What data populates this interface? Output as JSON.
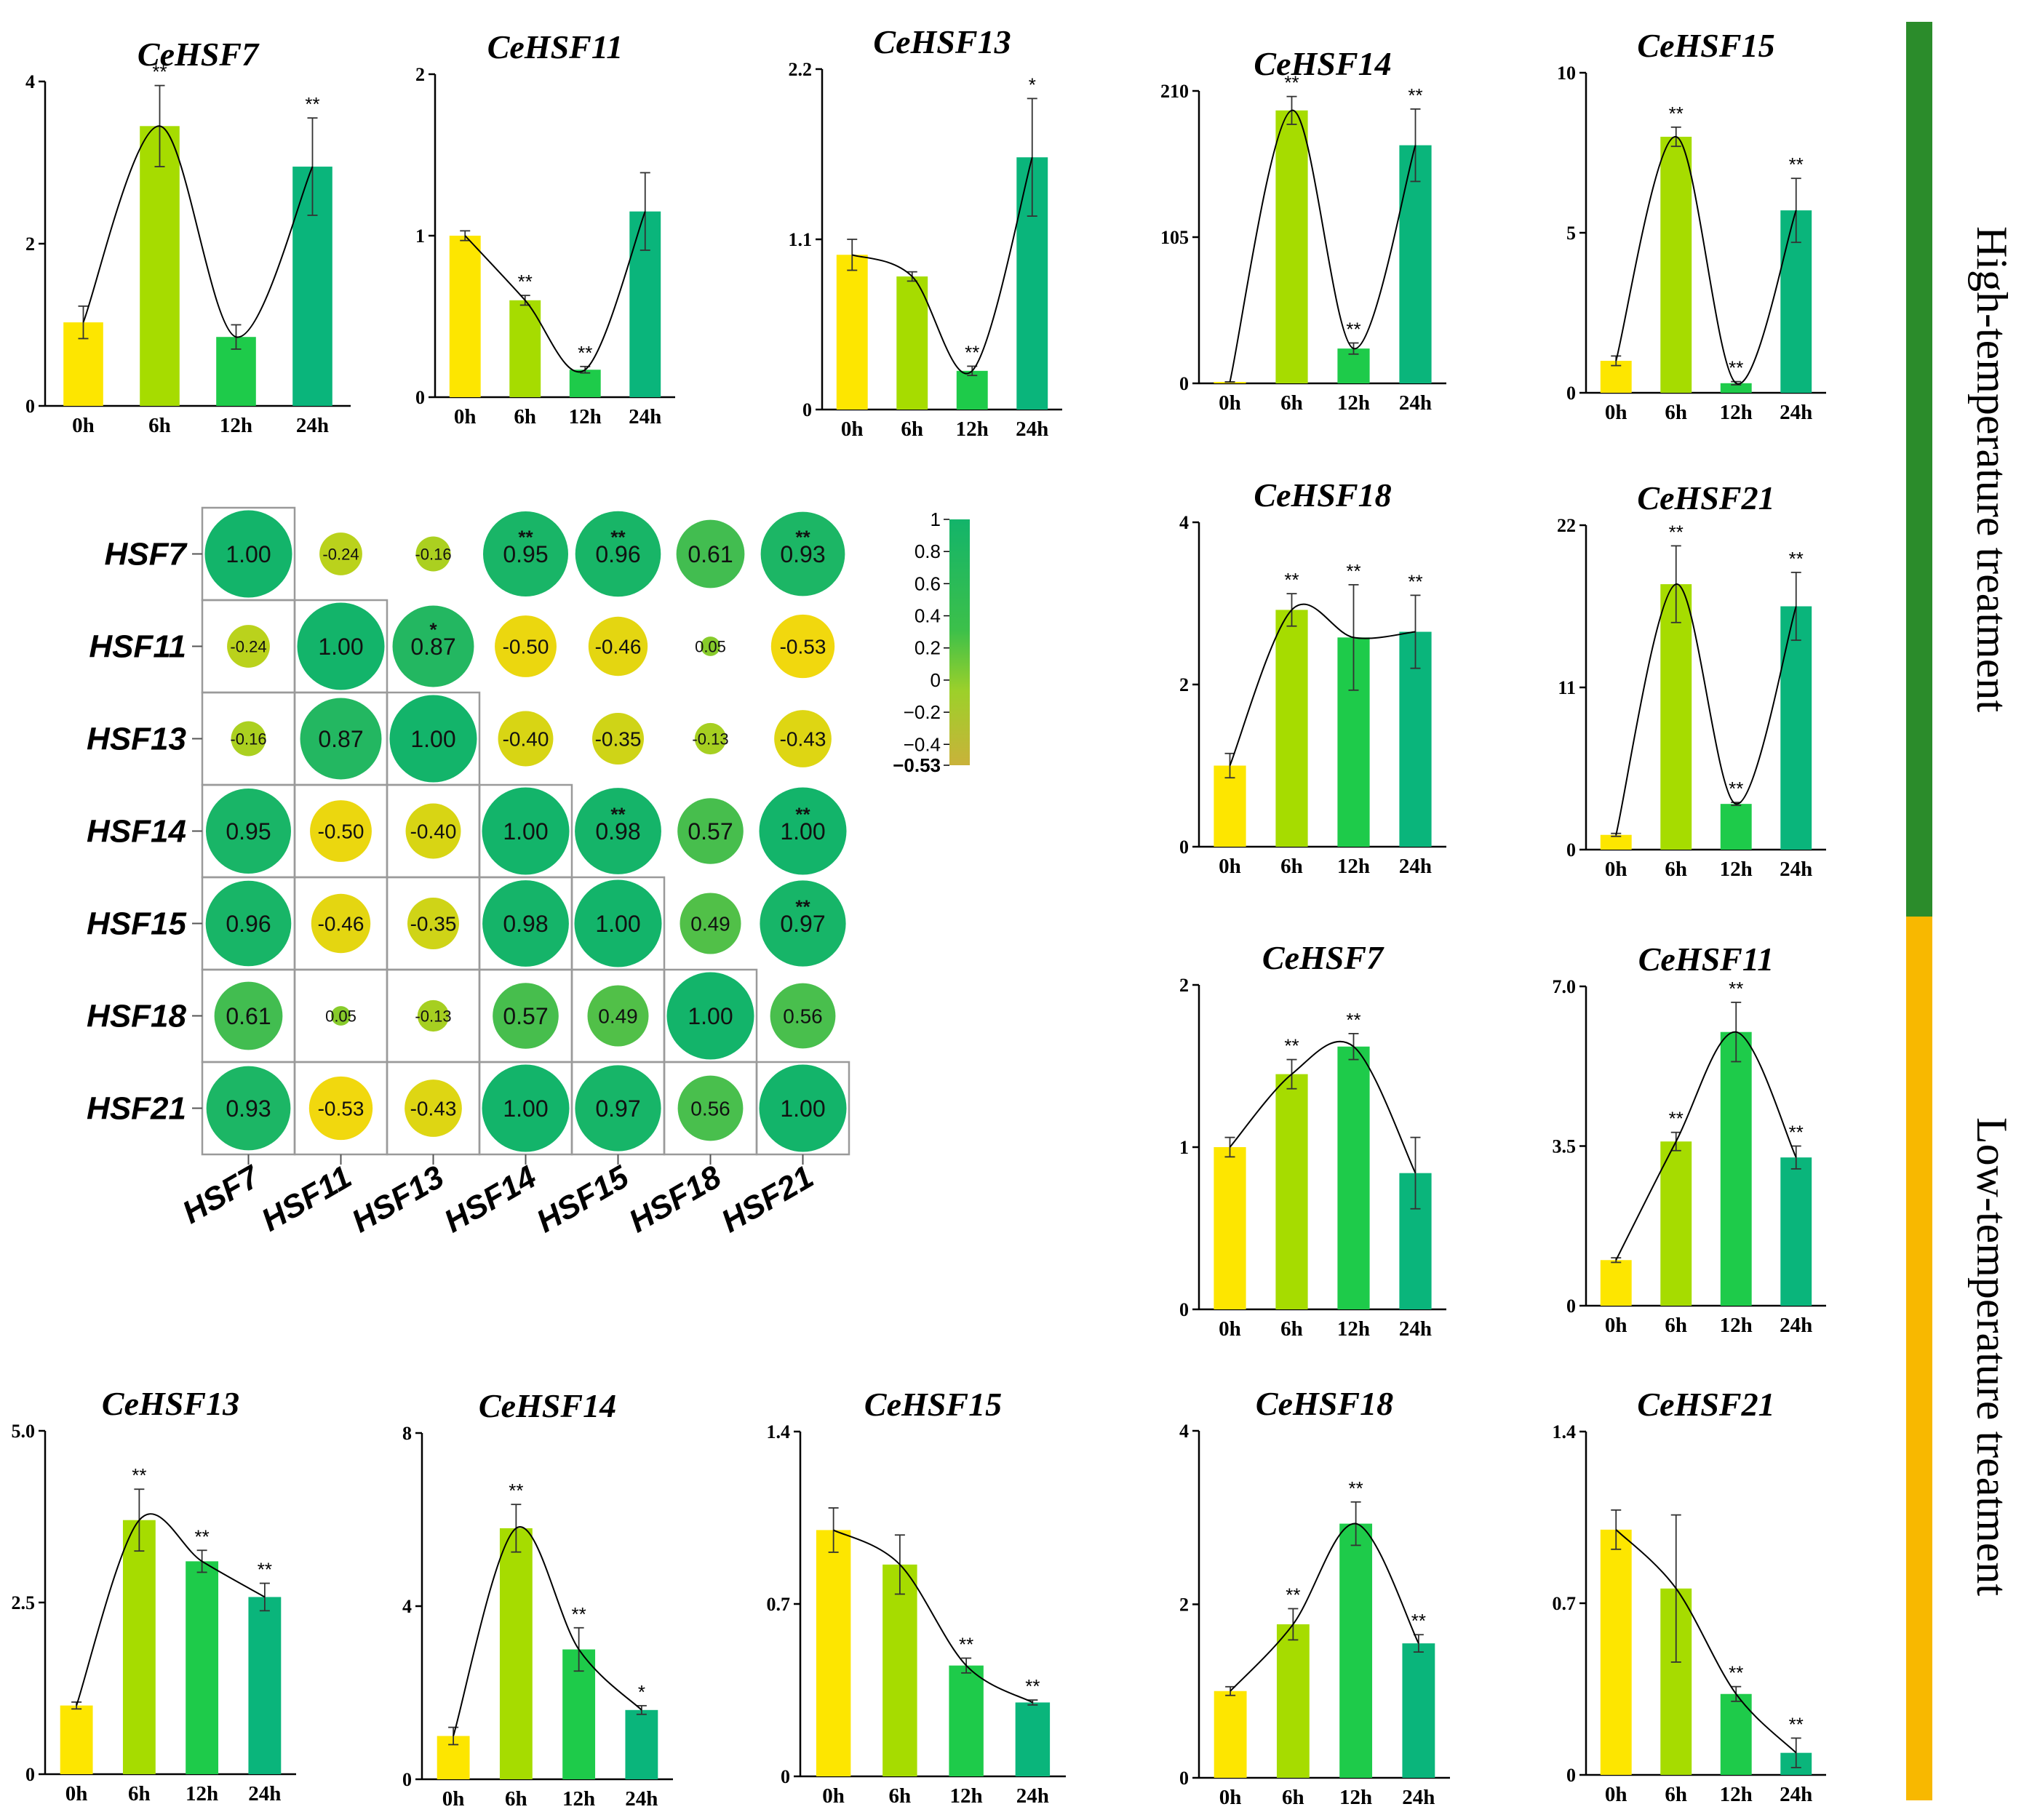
{
  "colors": {
    "bar_0h": "#fde600",
    "bar_6h": "#a6dc00",
    "bar_12h": "#1ecb4a",
    "bar_24h": "#0ab57b",
    "high_band": "#2b8c2b",
    "low_band": "#f8b800",
    "corr_pos": "#13b46a",
    "corr_neg": "#f1d80e"
  },
  "side_labels": {
    "high": "High-temperature treatment",
    "low": "Low-temperature treatment"
  },
  "chart_data": [
    {
      "id": "high-CeHSF7",
      "type": "bar",
      "group": "High-temperature treatment",
      "title": "CeHSF7",
      "categories": [
        "0h",
        "6h",
        "12h",
        "24h"
      ],
      "values": [
        1.03,
        3.45,
        0.85,
        2.95
      ],
      "errors": [
        0.2,
        0.5,
        0.15,
        0.6
      ],
      "stars": [
        "",
        "**",
        "",
        "**"
      ],
      "ylim": [
        0,
        4
      ],
      "yticks": [
        "0",
        "2",
        "4"
      ]
    },
    {
      "id": "high-CeHSF11",
      "type": "bar",
      "group": "High-temperature treatment",
      "title": "CeHSF11",
      "categories": [
        "0h",
        "6h",
        "12h",
        "24h"
      ],
      "values": [
        1.0,
        0.6,
        0.17,
        1.15
      ],
      "errors": [
        0.03,
        0.03,
        0.02,
        0.24
      ],
      "stars": [
        "",
        "**",
        "**",
        ""
      ],
      "ylim": [
        0,
        2
      ],
      "yticks": [
        "0",
        "1",
        "2"
      ]
    },
    {
      "id": "high-CeHSF13",
      "type": "bar",
      "group": "High-temperature treatment",
      "title": "CeHSF13",
      "categories": [
        "0h",
        "6h",
        "12h",
        "24h"
      ],
      "values": [
        1.0,
        0.86,
        0.25,
        1.63
      ],
      "errors": [
        0.1,
        0.03,
        0.03,
        0.38
      ],
      "stars": [
        "",
        "",
        "**",
        "*"
      ],
      "ylim": [
        0,
        2.2
      ],
      "yticks": [
        "0",
        "1.1",
        "2.2"
      ]
    },
    {
      "id": "high-CeHSF14",
      "type": "bar",
      "group": "High-temperature treatment",
      "title": "CeHSF14",
      "categories": [
        "0h",
        "6h",
        "12h",
        "24h"
      ],
      "values": [
        1,
        196,
        25,
        171
      ],
      "errors": [
        0.1,
        10,
        4,
        26
      ],
      "stars": [
        "",
        "**",
        "**",
        "**"
      ],
      "ylim": [
        0,
        210
      ],
      "yticks": [
        "0",
        "105",
        "210"
      ]
    },
    {
      "id": "high-CeHSF15",
      "type": "bar",
      "group": "High-temperature treatment",
      "title": "CeHSF15",
      "categories": [
        "0h",
        "6h",
        "12h",
        "24h"
      ],
      "values": [
        1.0,
        8.0,
        0.3,
        5.7
      ],
      "errors": [
        0.15,
        0.3,
        0.05,
        1.0
      ],
      "stars": [
        "",
        "**",
        "**",
        "**"
      ],
      "ylim": [
        0,
        10
      ],
      "yticks": [
        "0",
        "5",
        "10"
      ]
    },
    {
      "id": "high-CeHSF18",
      "type": "bar",
      "group": "High-temperature treatment",
      "title": "CeHSF18",
      "categories": [
        "0h",
        "6h",
        "12h",
        "24h"
      ],
      "values": [
        1.0,
        2.92,
        2.58,
        2.65
      ],
      "errors": [
        0.15,
        0.2,
        0.65,
        0.45
      ],
      "stars": [
        "",
        "**",
        "**",
        "**"
      ],
      "ylim": [
        0,
        4
      ],
      "yticks": [
        "0",
        "2",
        "4"
      ]
    },
    {
      "id": "high-CeHSF21",
      "type": "bar",
      "group": "High-temperature treatment",
      "title": "CeHSF21",
      "categories": [
        "0h",
        "6h",
        "12h",
        "24h"
      ],
      "values": [
        1.0,
        18.0,
        3.1,
        16.5
      ],
      "errors": [
        0.1,
        2.6,
        0.1,
        2.3
      ],
      "stars": [
        "",
        "**",
        "**",
        "**"
      ],
      "ylim": [
        0,
        22
      ],
      "yticks": [
        "0",
        "11",
        "22"
      ]
    },
    {
      "id": "low-CeHSF7",
      "type": "bar",
      "group": "Low-temperature treatment",
      "title": "CeHSF7",
      "categories": [
        "0h",
        "6h",
        "12h",
        "24h"
      ],
      "values": [
        1.0,
        1.45,
        1.62,
        0.84
      ],
      "errors": [
        0.06,
        0.09,
        0.08,
        0.22
      ],
      "stars": [
        "",
        "**",
        "**",
        ""
      ],
      "ylim": [
        0,
        2
      ],
      "yticks": [
        "0",
        "1",
        "2"
      ]
    },
    {
      "id": "low-CeHSF11",
      "type": "bar",
      "group": "Low-temperature treatment",
      "title": "CeHSF11",
      "categories": [
        "0h",
        "6h",
        "12h",
        "24h"
      ],
      "values": [
        1.0,
        3.6,
        6.0,
        3.25
      ],
      "errors": [
        0.05,
        0.2,
        0.65,
        0.25
      ],
      "stars": [
        "",
        "**",
        "**",
        "**"
      ],
      "ylim": [
        0,
        7
      ],
      "yticks": [
        "0",
        "3.5",
        "7.0"
      ]
    },
    {
      "id": "low-CeHSF13",
      "type": "bar",
      "group": "Low-temperature treatment",
      "title": "CeHSF13",
      "categories": [
        "0h",
        "6h",
        "12h",
        "24h"
      ],
      "values": [
        1.0,
        3.7,
        3.1,
        2.58
      ],
      "errors": [
        0.05,
        0.45,
        0.16,
        0.2
      ],
      "stars": [
        "",
        "**",
        "**",
        "**"
      ],
      "ylim": [
        0,
        5
      ],
      "yticks": [
        "0",
        "2.5",
        "5.0"
      ]
    },
    {
      "id": "low-CeHSF14",
      "type": "bar",
      "group": "Low-temperature treatment",
      "title": "CeHSF14",
      "categories": [
        "0h",
        "6h",
        "12h",
        "24h"
      ],
      "values": [
        1.0,
        5.8,
        3.0,
        1.6
      ],
      "errors": [
        0.2,
        0.55,
        0.5,
        0.1
      ],
      "stars": [
        "",
        "**",
        "**",
        "*"
      ],
      "ylim": [
        0,
        8
      ],
      "yticks": [
        "0",
        "4",
        "8"
      ]
    },
    {
      "id": "low-CeHSF15",
      "type": "bar",
      "group": "Low-temperature treatment",
      "title": "CeHSF15",
      "categories": [
        "0h",
        "6h",
        "12h",
        "24h"
      ],
      "values": [
        1.0,
        0.86,
        0.45,
        0.3
      ],
      "errors": [
        0.09,
        0.12,
        0.03,
        0.01
      ],
      "stars": [
        "",
        "",
        "**",
        "**"
      ],
      "ylim": [
        0,
        1.4
      ],
      "yticks": [
        "0",
        "0.7",
        "1.4"
      ]
    },
    {
      "id": "low-CeHSF18",
      "type": "bar",
      "group": "Low-temperature treatment",
      "title": "CeHSF18",
      "categories": [
        "0h",
        "6h",
        "12h",
        "24h"
      ],
      "values": [
        1.0,
        1.77,
        2.93,
        1.55
      ],
      "errors": [
        0.05,
        0.18,
        0.25,
        0.1
      ],
      "stars": [
        "",
        "**",
        "**",
        "**"
      ],
      "ylim": [
        0,
        4
      ],
      "yticks": [
        "0",
        "2",
        "4"
      ]
    },
    {
      "id": "low-CeHSF21",
      "type": "bar",
      "group": "Low-temperature treatment",
      "title": "CeHSF21",
      "categories": [
        "0h",
        "6h",
        "12h",
        "24h"
      ],
      "values": [
        1.0,
        0.76,
        0.33,
        0.09
      ],
      "errors": [
        0.08,
        0.3,
        0.03,
        0.06
      ],
      "stars": [
        "",
        "",
        "**",
        "**"
      ],
      "ylim": [
        0,
        1.4
      ],
      "yticks": [
        "0",
        "0.7",
        "1.4"
      ]
    }
  ],
  "correlation": {
    "type": "correlation-matrix",
    "labels": [
      "HSF7",
      "HSF11",
      "HSF13",
      "HSF14",
      "HSF15",
      "HSF18",
      "HSF21"
    ],
    "matrix": [
      [
        1.0,
        -0.24,
        -0.16,
        0.95,
        0.96,
        0.61,
        0.93
      ],
      [
        -0.24,
        1.0,
        0.87,
        -0.5,
        -0.46,
        0.05,
        -0.53
      ],
      [
        -0.16,
        0.87,
        1.0,
        -0.4,
        -0.35,
        -0.13,
        -0.43
      ],
      [
        0.95,
        -0.5,
        -0.4,
        1.0,
        0.98,
        0.57,
        1.0
      ],
      [
        0.96,
        -0.46,
        -0.35,
        0.98,
        1.0,
        0.49,
        0.97
      ],
      [
        0.61,
        0.05,
        -0.13,
        0.57,
        0.49,
        1.0,
        0.56
      ],
      [
        0.93,
        -0.53,
        -0.43,
        1.0,
        0.97,
        0.56,
        1.0
      ]
    ],
    "value_labels": [
      [
        "1.00",
        "-0.24",
        "-0.16",
        "0.95",
        "0.96",
        "0.61",
        "0.93"
      ],
      [
        "-0.24",
        "1.00",
        "0.87",
        "-0.50",
        "-0.46",
        "0.05",
        "-0.53"
      ],
      [
        "-0.16",
        "0.87",
        "1.00",
        "-0.40",
        "-0.35",
        "-0.13",
        "-0.43"
      ],
      [
        "0.95",
        "-0.50",
        "-0.40",
        "1.00",
        "0.98",
        "0.57",
        "1.00"
      ],
      [
        "0.96",
        "-0.46",
        "-0.35",
        "0.98",
        "1.00",
        "0.49",
        "0.97"
      ],
      [
        "0.61",
        "0.05",
        "-0.13",
        "0.57",
        "0.49",
        "1.00",
        "0.56"
      ],
      [
        "0.93",
        "-0.53",
        "-0.43",
        "1.00",
        "0.97",
        "0.56",
        "1.00"
      ]
    ],
    "stars": [
      [
        "",
        "",
        "",
        "**",
        "**",
        "",
        "**"
      ],
      [
        "",
        "",
        "*",
        "",
        "",
        "",
        ""
      ],
      [
        "",
        "",
        "",
        "",
        "",
        "",
        ""
      ],
      [
        "",
        "",
        "",
        "",
        "**",
        "",
        "**"
      ],
      [
        "",
        "",
        "",
        "",
        "",
        "",
        "**"
      ],
      [
        "",
        "",
        "",
        "",
        "",
        "",
        ""
      ],
      [
        "",
        "",
        "",
        "",
        "",
        "",
        ""
      ]
    ],
    "colorbar_ticks": [
      "1",
      "0.8",
      "0.6",
      "0.4",
      "0.2",
      "0",
      "−0.2",
      "−0.4",
      "−0.53"
    ],
    "colorbar_range": [
      -0.53,
      1
    ]
  }
}
